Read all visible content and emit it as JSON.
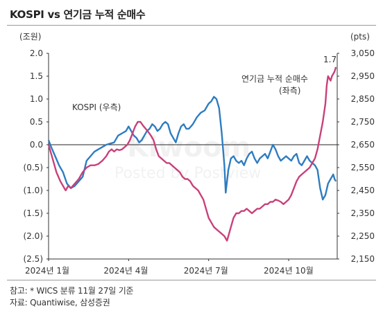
{
  "title": "KOSPI vs 연기금 누적 순매수",
  "footnotes": {
    "line1": "참고: * WICS 분류 11월 27일 기준",
    "line2": "자료: Quantiwise, 삼성증권"
  },
  "watermark": {
    "main": "Kiwoom",
    "sub": "Posted by Postview"
  },
  "chart_data": {
    "type": "line",
    "x_labels": [
      "2024년 1월",
      "2024년 4월",
      "2024년 7월",
      "2024년 10월"
    ],
    "x_label_index": [
      0,
      61,
      122,
      183
    ],
    "left_axis": {
      "unit": "(조원)",
      "min": -2.5,
      "max": 2.0,
      "ticks": [
        2.0,
        1.5,
        1.0,
        0.5,
        0.0,
        -0.5,
        -1.0,
        -1.5,
        -2.0,
        -2.5
      ],
      "tick_labels": [
        "2.0",
        "1.5",
        "1.0",
        "0.5",
        "0.0",
        "(0.5)",
        "(1.0)",
        "(1.5)",
        "(2.0)",
        "(2.5)"
      ]
    },
    "right_axis": {
      "unit": "(pts)",
      "min": 2150,
      "max": 3050,
      "ticks": [
        3050,
        2950,
        2850,
        2750,
        2650,
        2550,
        2450,
        2350,
        2250,
        2150
      ],
      "tick_labels": [
        "3,050",
        "2,950",
        "2,850",
        "2,750",
        "2,650",
        "2,550",
        "2,450",
        "2,350",
        "2,250",
        "2,150"
      ]
    },
    "series": [
      {
        "name": "KOSPI (우측)",
        "axis": "right",
        "color": "#2e7cc0",
        "points": [
          [
            0,
            2670
          ],
          [
            2,
            2640
          ],
          [
            5,
            2600
          ],
          [
            8,
            2560
          ],
          [
            11,
            2530
          ],
          [
            14,
            2480
          ],
          [
            17,
            2460
          ],
          [
            20,
            2470
          ],
          [
            23,
            2490
          ],
          [
            26,
            2510
          ],
          [
            29,
            2580
          ],
          [
            32,
            2600
          ],
          [
            35,
            2620
          ],
          [
            38,
            2630
          ],
          [
            41,
            2640
          ],
          [
            44,
            2650
          ],
          [
            47,
            2655
          ],
          [
            50,
            2660
          ],
          [
            53,
            2690
          ],
          [
            56,
            2700
          ],
          [
            59,
            2710
          ],
          [
            61,
            2730
          ],
          [
            63,
            2710
          ],
          [
            65,
            2690
          ],
          [
            67,
            2680
          ],
          [
            69,
            2660
          ],
          [
            71,
            2670
          ],
          [
            73,
            2690
          ],
          [
            75,
            2710
          ],
          [
            77,
            2720
          ],
          [
            79,
            2740
          ],
          [
            81,
            2730
          ],
          [
            83,
            2710
          ],
          [
            85,
            2720
          ],
          [
            87,
            2740
          ],
          [
            89,
            2750
          ],
          [
            91,
            2740
          ],
          [
            93,
            2700
          ],
          [
            95,
            2680
          ],
          [
            97,
            2660
          ],
          [
            99,
            2700
          ],
          [
            101,
            2730
          ],
          [
            103,
            2740
          ],
          [
            105,
            2720
          ],
          [
            107,
            2720
          ],
          [
            110,
            2740
          ],
          [
            113,
            2770
          ],
          [
            116,
            2790
          ],
          [
            119,
            2800
          ],
          [
            122,
            2830
          ],
          [
            124,
            2840
          ],
          [
            126,
            2860
          ],
          [
            128,
            2850
          ],
          [
            130,
            2810
          ],
          [
            132,
            2700
          ],
          [
            134,
            2560
          ],
          [
            135,
            2440
          ],
          [
            137,
            2540
          ],
          [
            139,
            2590
          ],
          [
            141,
            2600
          ],
          [
            143,
            2580
          ],
          [
            145,
            2570
          ],
          [
            147,
            2580
          ],
          [
            149,
            2560
          ],
          [
            151,
            2590
          ],
          [
            153,
            2610
          ],
          [
            155,
            2620
          ],
          [
            157,
            2590
          ],
          [
            159,
            2570
          ],
          [
            161,
            2590
          ],
          [
            163,
            2600
          ],
          [
            165,
            2610
          ],
          [
            167,
            2590
          ],
          [
            169,
            2620
          ],
          [
            171,
            2650
          ],
          [
            173,
            2630
          ],
          [
            175,
            2600
          ],
          [
            177,
            2580
          ],
          [
            179,
            2590
          ],
          [
            181,
            2600
          ],
          [
            183,
            2590
          ],
          [
            185,
            2580
          ],
          [
            187,
            2600
          ],
          [
            189,
            2610
          ],
          [
            191,
            2570
          ],
          [
            193,
            2560
          ],
          [
            195,
            2580
          ],
          [
            197,
            2600
          ],
          [
            199,
            2580
          ],
          [
            201,
            2570
          ],
          [
            203,
            2560
          ],
          [
            205,
            2540
          ],
          [
            207,
            2460
          ],
          [
            209,
            2410
          ],
          [
            211,
            2430
          ],
          [
            213,
            2480
          ],
          [
            215,
            2500
          ],
          [
            217,
            2520
          ],
          [
            218,
            2500
          ],
          [
            219,
            2490
          ]
        ]
      },
      {
        "name": "연기금 누적 순매수 (좌측)",
        "axis": "left",
        "color": "#c8407a",
        "end_label": "1.7",
        "points": [
          [
            0,
            0.0
          ],
          [
            3,
            -0.3
          ],
          [
            6,
            -0.6
          ],
          [
            9,
            -0.8
          ],
          [
            11,
            -0.9
          ],
          [
            13,
            -1.0
          ],
          [
            15,
            -0.9
          ],
          [
            17,
            -0.95
          ],
          [
            20,
            -0.85
          ],
          [
            23,
            -0.75
          ],
          [
            26,
            -0.6
          ],
          [
            29,
            -0.5
          ],
          [
            32,
            -0.45
          ],
          [
            35,
            -0.45
          ],
          [
            38,
            -0.42
          ],
          [
            41,
            -0.35
          ],
          [
            44,
            -0.25
          ],
          [
            46,
            -0.15
          ],
          [
            48,
            -0.1
          ],
          [
            50,
            -0.15
          ],
          [
            52,
            -0.1
          ],
          [
            54,
            -0.12
          ],
          [
            56,
            -0.1
          ],
          [
            58,
            -0.05
          ],
          [
            60,
            0.0
          ],
          [
            62,
            0.1
          ],
          [
            64,
            0.25
          ],
          [
            66,
            0.4
          ],
          [
            68,
            0.5
          ],
          [
            70,
            0.5
          ],
          [
            72,
            0.42
          ],
          [
            74,
            0.35
          ],
          [
            76,
            0.28
          ],
          [
            78,
            0.2
          ],
          [
            80,
            0.1
          ],
          [
            82,
            -0.1
          ],
          [
            84,
            -0.25
          ],
          [
            86,
            -0.3
          ],
          [
            88,
            -0.35
          ],
          [
            90,
            -0.4
          ],
          [
            92,
            -0.4
          ],
          [
            94,
            -0.45
          ],
          [
            96,
            -0.5
          ],
          [
            98,
            -0.55
          ],
          [
            100,
            -0.6
          ],
          [
            102,
            -0.7
          ],
          [
            104,
            -0.75
          ],
          [
            106,
            -0.75
          ],
          [
            108,
            -0.8
          ],
          [
            110,
            -0.9
          ],
          [
            112,
            -0.95
          ],
          [
            114,
            -1.0
          ],
          [
            116,
            -1.1
          ],
          [
            118,
            -1.2
          ],
          [
            120,
            -1.4
          ],
          [
            122,
            -1.6
          ],
          [
            124,
            -1.7
          ],
          [
            126,
            -1.8
          ],
          [
            128,
            -1.85
          ],
          [
            130,
            -1.9
          ],
          [
            132,
            -1.95
          ],
          [
            134,
            -2.0
          ],
          [
            136,
            -2.1
          ],
          [
            137,
            -2.0
          ],
          [
            139,
            -1.8
          ],
          [
            141,
            -1.6
          ],
          [
            143,
            -1.5
          ],
          [
            145,
            -1.5
          ],
          [
            147,
            -1.45
          ],
          [
            149,
            -1.45
          ],
          [
            151,
            -1.4
          ],
          [
            153,
            -1.45
          ],
          [
            155,
            -1.5
          ],
          [
            157,
            -1.45
          ],
          [
            159,
            -1.4
          ],
          [
            161,
            -1.4
          ],
          [
            163,
            -1.35
          ],
          [
            165,
            -1.3
          ],
          [
            167,
            -1.3
          ],
          [
            169,
            -1.25
          ],
          [
            171,
            -1.25
          ],
          [
            173,
            -1.2
          ],
          [
            175,
            -1.22
          ],
          [
            177,
            -1.25
          ],
          [
            179,
            -1.3
          ],
          [
            181,
            -1.25
          ],
          [
            183,
            -1.2
          ],
          [
            185,
            -1.1
          ],
          [
            187,
            -0.95
          ],
          [
            189,
            -0.8
          ],
          [
            191,
            -0.7
          ],
          [
            193,
            -0.65
          ],
          [
            195,
            -0.6
          ],
          [
            197,
            -0.55
          ],
          [
            199,
            -0.5
          ],
          [
            201,
            -0.4
          ],
          [
            203,
            -0.3
          ],
          [
            205,
            -0.1
          ],
          [
            207,
            0.2
          ],
          [
            209,
            0.5
          ],
          [
            211,
            0.9
          ],
          [
            212,
            1.3
          ],
          [
            213,
            1.5
          ],
          [
            215,
            1.4
          ],
          [
            216,
            1.5
          ],
          [
            218,
            1.6
          ],
          [
            219,
            1.7
          ]
        ]
      }
    ],
    "annotations": [
      {
        "text": "KOSPI (우측)",
        "series": 0
      },
      {
        "text": "연기금 누적 순매수",
        "series": 1
      },
      {
        "text": "(좌측)",
        "series": 1
      }
    ]
  }
}
